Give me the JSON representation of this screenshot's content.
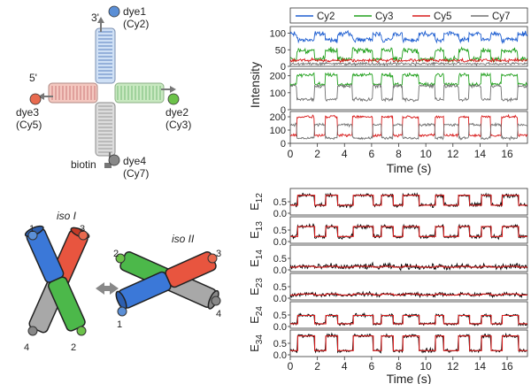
{
  "junction": {
    "strand_3": "3'",
    "strand_5": "5'",
    "dyes": [
      {
        "name": "dye1",
        "fluor": "(Cy2)",
        "color": "#5b8fd6"
      },
      {
        "name": "dye2",
        "fluor": "(Cy3)",
        "color": "#6cc24a"
      },
      {
        "name": "dye3",
        "fluor": "(Cy5)",
        "color": "#e86a4f"
      },
      {
        "name": "dye4",
        "fluor": "(Cy7)",
        "color": "#888888"
      }
    ],
    "biotin": "biotin"
  },
  "isomers": {
    "iso1": {
      "label": "iso I",
      "ends": [
        "1",
        "3",
        "4",
        "2"
      ]
    },
    "iso2": {
      "label": "iso II",
      "ends": [
        "2",
        "3",
        "1",
        "4"
      ]
    }
  },
  "chart_data": [
    {
      "type": "line",
      "ylabel": "Intensity",
      "xlabel": "Time (s)",
      "xlim": [
        0,
        17.5
      ],
      "xticks": [
        "0",
        "2",
        "4",
        "6",
        "8",
        "10",
        "12",
        "14",
        "16"
      ],
      "legend": {
        "placement": "top",
        "entries": [
          {
            "name": "Cy2",
            "color": "#1f5fd1"
          },
          {
            "name": "Cy3",
            "color": "#23a11f"
          },
          {
            "name": "Cy5",
            "color": "#d81b1b"
          },
          {
            "name": "Cy7",
            "color": "#707070"
          }
        ]
      },
      "panels": [
        {
          "yticks": [
            "0",
            "50",
            "100"
          ],
          "ylim": [
            0,
            120
          ],
          "traces": [
            {
              "series": "Cy2",
              "color": "#1f5fd1",
              "base": 98,
              "alt": 80,
              "noise": 7
            },
            {
              "series": "Cy3",
              "color": "#23a11f",
              "base": 22,
              "alt": 48,
              "noise": 8
            },
            {
              "series": "Cy5",
              "color": "#d81b1b",
              "base": 18,
              "alt": 18,
              "noise": 5
            },
            {
              "series": "Cy7",
              "color": "#707070",
              "base": 8,
              "alt": 8,
              "noise": 4
            }
          ]
        },
        {
          "yticks": [
            "0",
            "100",
            "200"
          ],
          "ylim": [
            0,
            240
          ],
          "traces": [
            {
              "series": "Cy3",
              "color": "#23a11f",
              "base": 150,
              "alt": 205,
              "noise": 10
            },
            {
              "series": "Cy7",
              "color": "#707070",
              "base": 140,
              "alt": 60,
              "noise": 10
            }
          ]
        },
        {
          "yticks": [
            "0",
            "100",
            "200"
          ],
          "ylim": [
            0,
            240
          ],
          "traces": [
            {
              "series": "Cy5",
              "color": "#d81b1b",
              "base": 60,
              "alt": 200,
              "noise": 10
            },
            {
              "series": "Cy7",
              "color": "#707070",
              "base": 140,
              "alt": 40,
              "noise": 10
            }
          ]
        }
      ],
      "state_switch_times": [
        0.5,
        1.8,
        2.6,
        3.5,
        4.6,
        6.1,
        6.7,
        7.6,
        8.3,
        9.5,
        10.7,
        11.3,
        12.4,
        13.2,
        14.1,
        14.8,
        15.6,
        16.8
      ]
    },
    {
      "type": "line",
      "xlabel": "Time (s)",
      "xlim": [
        0,
        17.5
      ],
      "xticks": [
        "0",
        "2",
        "4",
        "6",
        "8",
        "10",
        "12",
        "14",
        "16"
      ],
      "yticks": [
        "0.0",
        "0.5"
      ],
      "ylim": [
        0,
        1.0
      ],
      "series": [
        {
          "name": "E",
          "sub": "12",
          "high": 0.78,
          "low": 0.35,
          "noise": 0.09
        },
        {
          "name": "E",
          "sub": "13",
          "high": 0.65,
          "low": 0.22,
          "noise": 0.09
        },
        {
          "name": "E",
          "sub": "14",
          "high": 0.15,
          "low": 0.12,
          "noise": 0.12
        },
        {
          "name": "E",
          "sub": "23",
          "high": 0.18,
          "low": 0.14,
          "noise": 0.08
        },
        {
          "name": "E",
          "sub": "24",
          "high": 0.48,
          "low": 0.12,
          "noise": 0.07
        },
        {
          "name": "E",
          "sub": "34",
          "high": 0.82,
          "low": 0.18,
          "noise": 0.08
        }
      ],
      "fit_color": "#d81b1b",
      "trace_color": "#000000"
    }
  ]
}
